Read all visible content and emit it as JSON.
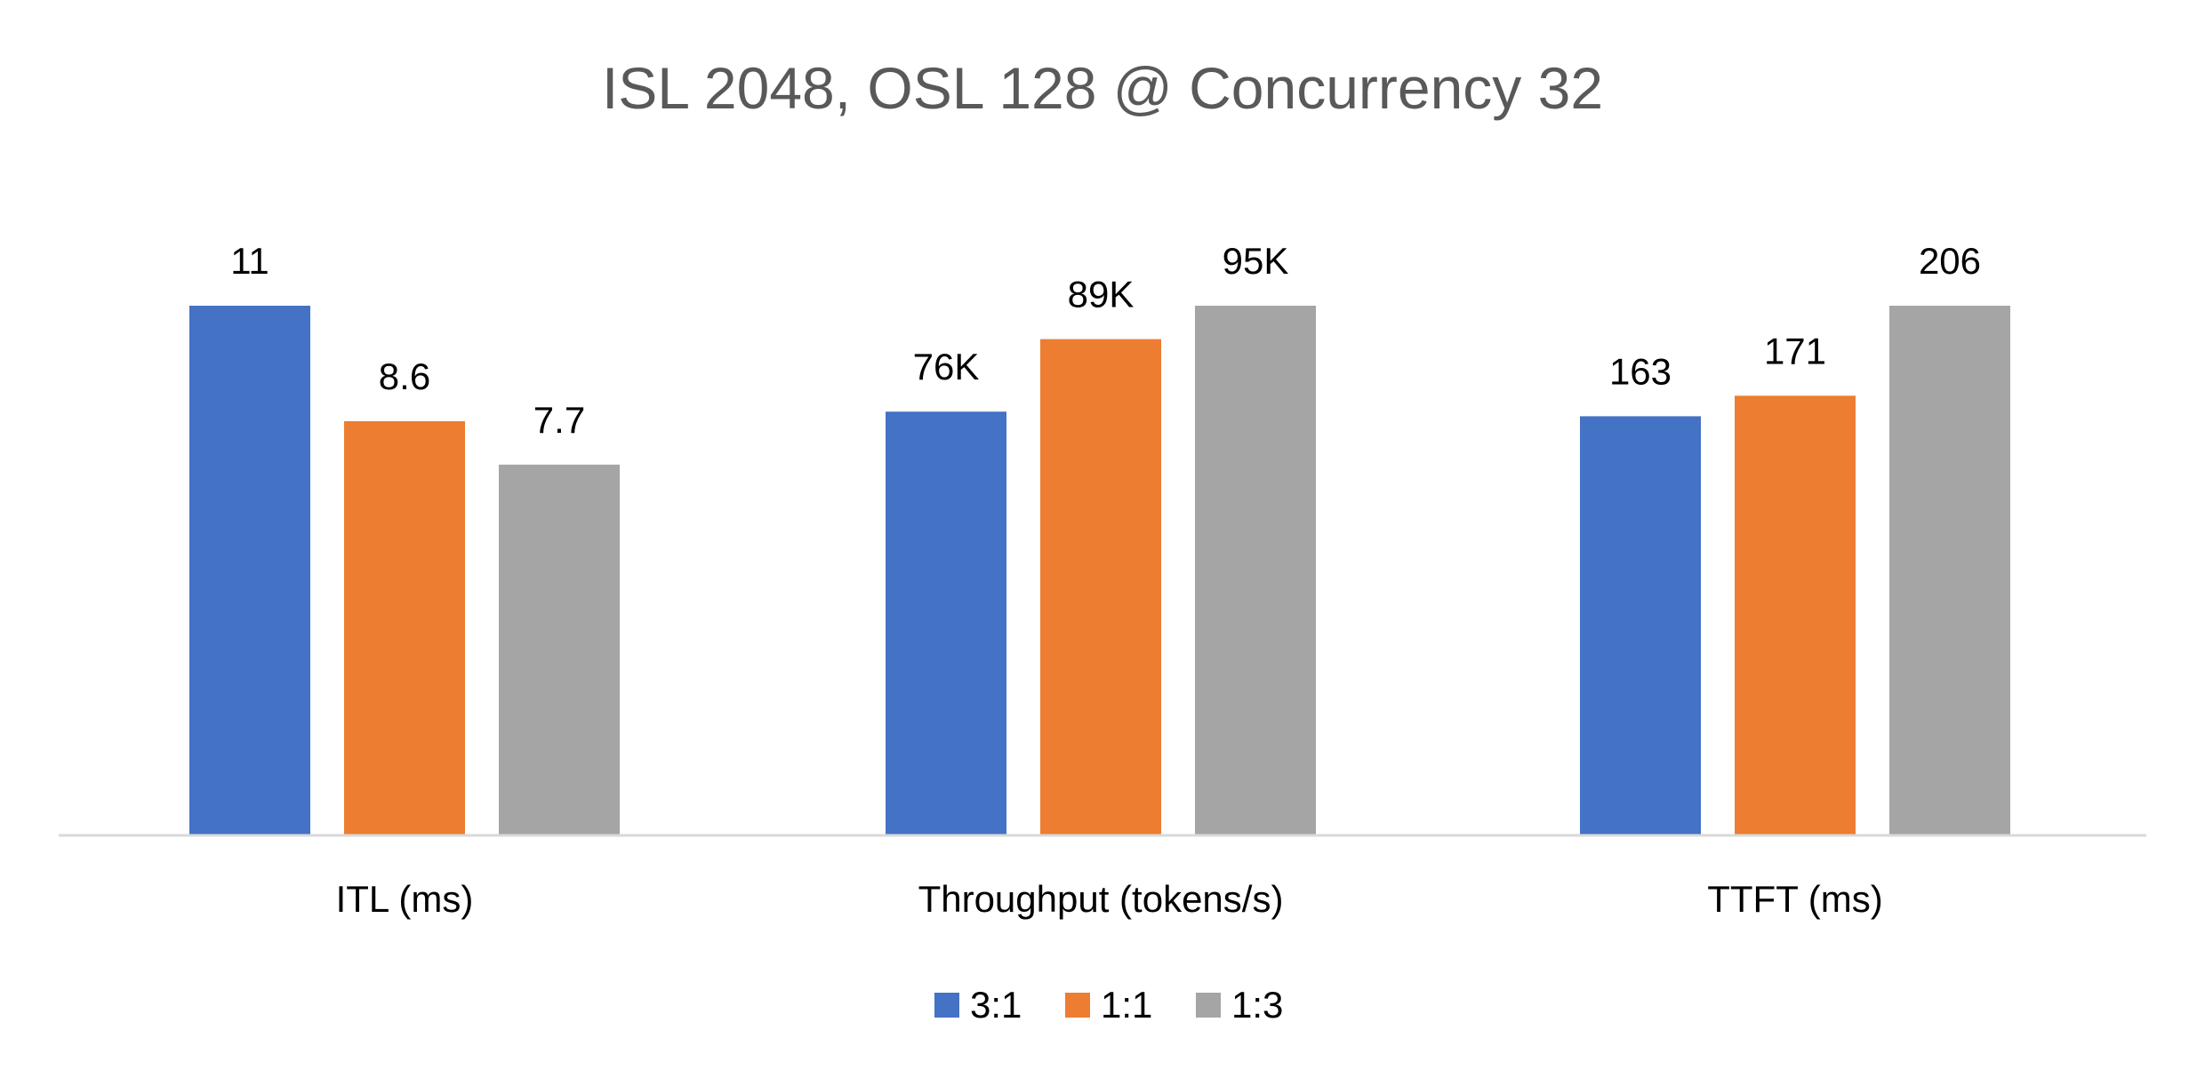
{
  "chart_data": {
    "type": "bar",
    "title": "ISL 2048, OSL 128 @ Concurrency 32",
    "categories": [
      "ITL (ms)",
      "Throughput (tokens/s)",
      "TTFT (ms)"
    ],
    "series": [
      {
        "name": "3:1",
        "color": "#4472C4",
        "values": [
          11,
          76000,
          163
        ],
        "labels": [
          "11",
          "76K",
          "163"
        ]
      },
      {
        "name": "1:1",
        "color": "#ED7D31",
        "values": [
          8.6,
          89000,
          171
        ],
        "labels": [
          "8.6",
          "89K",
          "171"
        ]
      },
      {
        "name": "1:3",
        "color": "#A5A5A5",
        "values": [
          7.7,
          95000,
          206
        ],
        "labels": [
          "7.7",
          "95K",
          "206"
        ]
      }
    ],
    "scale": "each category scaled independently so its largest value reaches the same height",
    "legend": "bottom-center",
    "grid": false
  }
}
